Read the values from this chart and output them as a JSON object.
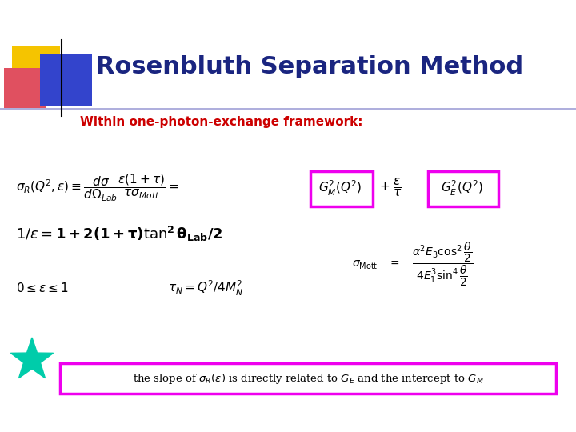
{
  "title": "Rosenbluth Separation Method",
  "subtitle": "Within one-photon-exchange framework:",
  "title_color": "#1a2580",
  "subtitle_color": "#cc0000",
  "bg_color": "#ffffff",
  "magenta_color": "#ee00ee",
  "star_color": "#00ccaa",
  "line_color": "#8888cc",
  "yellow_color": "#f5c400",
  "red_color": "#e05060",
  "blue_color": "#3344cc"
}
